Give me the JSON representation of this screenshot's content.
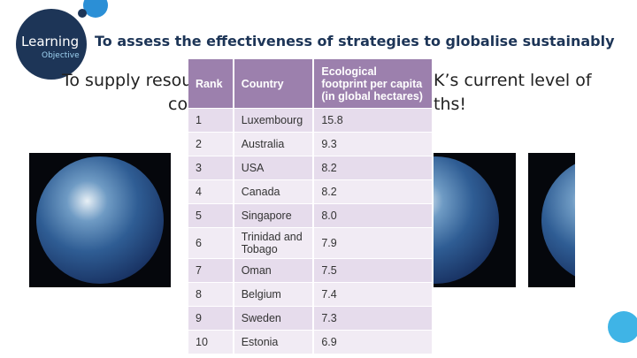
{
  "logo": {
    "line1": "Learning",
    "line2": "Objective"
  },
  "title": "To assess the effectiveness of strategies to globalise sustainably",
  "body_fragments": [
    "To supply resou",
    "K’s current level of",
    "co",
    "ths!"
  ],
  "table": {
    "header": [
      "Rank",
      "Country",
      "Ecological footprint per capita (in global hectares)"
    ],
    "rows": [
      [
        "1",
        "Luxembourg",
        "15.8"
      ],
      [
        "2",
        "Australia",
        "9.3"
      ],
      [
        "3",
        "USA",
        "8.2"
      ],
      [
        "4",
        "Canada",
        "8.2"
      ],
      [
        "5",
        "Singapore",
        "8.0"
      ],
      [
        "6",
        "Trinidad and Tobago",
        "7.9"
      ],
      [
        "7",
        "Oman",
        "7.5"
      ],
      [
        "8",
        "Belgium",
        "7.4"
      ],
      [
        "9",
        "Sweden",
        "7.3"
      ],
      [
        "10",
        "Estonia",
        "6.9"
      ]
    ]
  }
}
